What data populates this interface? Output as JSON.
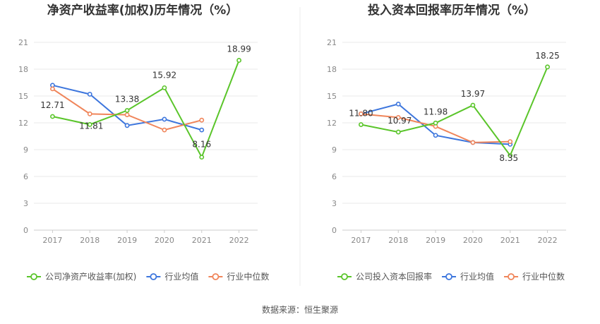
{
  "source_text": "数据来源：恒生聚源",
  "chart_data": [
    {
      "type": "line",
      "title": "净资产收益率(加权)历年情况（%）",
      "categories": [
        "2017",
        "2018",
        "2019",
        "2020",
        "2021",
        "2022"
      ],
      "ylim": [
        0,
        21
      ],
      "yticks": [
        0,
        3,
        6,
        9,
        12,
        15,
        18,
        21
      ],
      "grid": true,
      "legend_position": "bottom",
      "series": [
        {
          "name": "公司净资产收益率(加权)",
          "color": "#5ac52a",
          "values": [
            12.71,
            11.81,
            13.38,
            15.92,
            8.16,
            18.99
          ],
          "labels": [
            "12.71",
            "11.81",
            "13.38",
            "15.92",
            "8.16",
            "18.99"
          ]
        },
        {
          "name": "行业均值",
          "color": "#3d76dd",
          "values": [
            16.2,
            15.2,
            11.7,
            12.4,
            11.2,
            null
          ],
          "labels": []
        },
        {
          "name": "行业中位数",
          "color": "#f0855a",
          "values": [
            15.8,
            13.0,
            12.9,
            11.2,
            12.3,
            null
          ],
          "labels": []
        }
      ]
    },
    {
      "type": "line",
      "title": "投入资本回报率历年情况（%）",
      "categories": [
        "2017",
        "2018",
        "2019",
        "2020",
        "2021",
        "2022"
      ],
      "ylim": [
        0,
        21
      ],
      "yticks": [
        0,
        3,
        6,
        9,
        12,
        15,
        18,
        21
      ],
      "grid": true,
      "legend_position": "bottom",
      "series": [
        {
          "name": "公司投入资本回报率",
          "color": "#5ac52a",
          "values": [
            11.8,
            10.97,
            11.98,
            13.97,
            8.35,
            18.25
          ],
          "labels": [
            "11.80",
            "10.97",
            "11.98",
            "13.97",
            "8.35",
            "18.25"
          ]
        },
        {
          "name": "行业均值",
          "color": "#3d76dd",
          "values": [
            13.0,
            14.1,
            10.6,
            9.8,
            9.6,
            null
          ],
          "labels": []
        },
        {
          "name": "行业中位数",
          "color": "#f0855a",
          "values": [
            13.0,
            12.6,
            11.6,
            9.8,
            9.9,
            null
          ],
          "labels": []
        }
      ]
    }
  ]
}
